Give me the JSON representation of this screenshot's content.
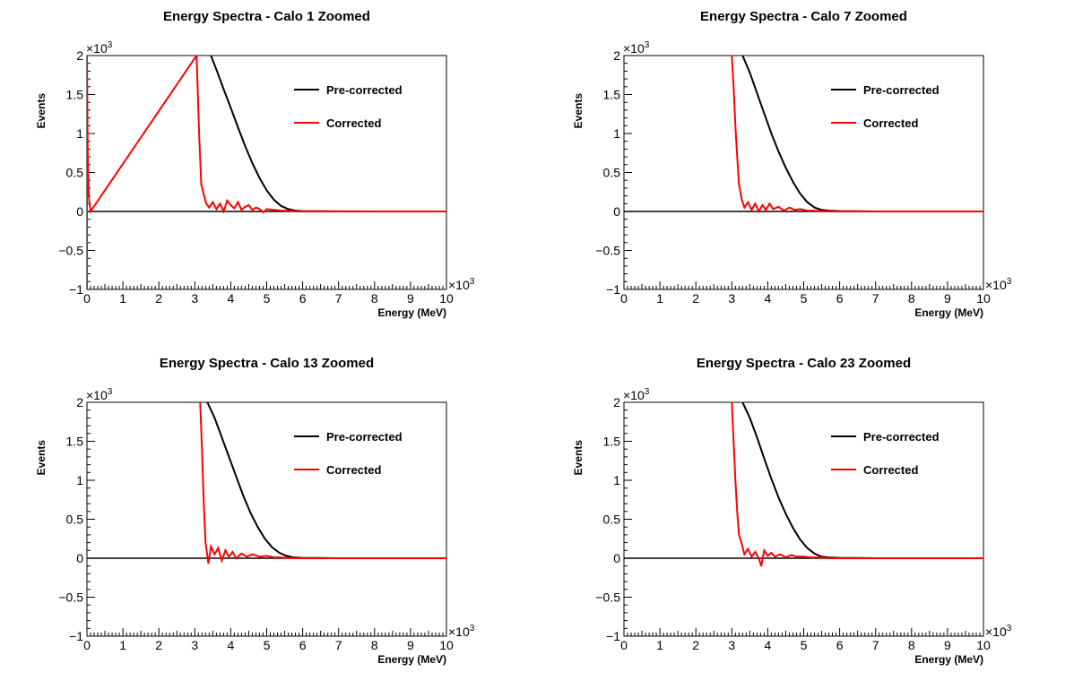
{
  "chart_data": [
    {
      "type": "line",
      "title": "Energy Spectra - Calo 1 Zoomed",
      "xlabel": "Energy (MeV)",
      "ylabel": "Events",
      "x_multiplier": "×10",
      "x_exponent": "3",
      "y_multiplier": "×10",
      "y_exponent": "3",
      "xlim": [
        0,
        10
      ],
      "ylim": [
        -1,
        2
      ],
      "x_ticks": [
        "0",
        "1",
        "2",
        "3",
        "4",
        "5",
        "6",
        "7",
        "8",
        "9",
        "10"
      ],
      "y_ticks": [
        "−1",
        "−0.5",
        "0",
        "0.5",
        "1",
        "1.5",
        "2"
      ],
      "legend_position": "top-right",
      "series": [
        {
          "name": "Pre-corrected",
          "color": "#000000",
          "x": [
            3.45,
            3.6,
            3.8,
            4.0,
            4.2,
            4.4,
            4.6,
            4.8,
            5.0,
            5.2,
            5.4,
            5.6,
            5.8,
            6.0,
            6.5,
            7.0,
            8.0,
            10.0
          ],
          "y": [
            2.0,
            1.82,
            1.57,
            1.33,
            1.08,
            0.84,
            0.62,
            0.43,
            0.27,
            0.15,
            0.07,
            0.03,
            0.01,
            0.005,
            0.002,
            0.001,
            0.0,
            0.0
          ]
        },
        {
          "name": "Corrected",
          "color": "#ff0000",
          "x": [
            0.0,
            0.0,
            0.02,
            0.05,
            0.1,
            3.05,
            3.12,
            3.18,
            3.25,
            3.32,
            3.4,
            3.5,
            3.6,
            3.7,
            3.8,
            3.9,
            4.0,
            4.1,
            4.2,
            4.3,
            4.4,
            4.5,
            4.6,
            4.7,
            4.8,
            4.9,
            5.0,
            5.2,
            5.4,
            5.6,
            5.8,
            6.0,
            6.5,
            7.0,
            8.0,
            10.0
          ],
          "y": [
            -1.0,
            2.0,
            0.8,
            0.2,
            0.0,
            2.0,
            1.0,
            0.35,
            0.22,
            0.1,
            0.05,
            0.12,
            0.03,
            0.1,
            0.0,
            0.14,
            0.08,
            0.04,
            0.12,
            0.02,
            0.06,
            0.08,
            0.02,
            0.05,
            0.03,
            -0.01,
            0.03,
            0.02,
            0.01,
            0.01,
            0.0,
            0.0,
            0.0,
            0.0,
            0.0,
            0.0
          ]
        }
      ]
    },
    {
      "type": "line",
      "title": "Energy Spectra - Calo 7 Zoomed",
      "xlabel": "Energy (MeV)",
      "ylabel": "Events",
      "x_multiplier": "×10",
      "x_exponent": "3",
      "y_multiplier": "×10",
      "y_exponent": "3",
      "xlim": [
        0,
        10
      ],
      "ylim": [
        -1,
        2
      ],
      "x_ticks": [
        "0",
        "1",
        "2",
        "3",
        "4",
        "5",
        "6",
        "7",
        "8",
        "9",
        "10"
      ],
      "y_ticks": [
        "−1",
        "−0.5",
        "0",
        "0.5",
        "1",
        "1.5",
        "2"
      ],
      "legend_position": "top-right",
      "series": [
        {
          "name": "Pre-corrected",
          "color": "#000000",
          "x": [
            3.3,
            3.5,
            3.7,
            3.9,
            4.1,
            4.3,
            4.5,
            4.7,
            4.9,
            5.1,
            5.3,
            5.5,
            5.7,
            6.0,
            6.5,
            7.0,
            8.0,
            10.0
          ],
          "y": [
            2.0,
            1.78,
            1.52,
            1.26,
            1.0,
            0.77,
            0.56,
            0.38,
            0.23,
            0.12,
            0.05,
            0.02,
            0.01,
            0.005,
            0.002,
            0.0,
            0.0,
            0.0
          ]
        },
        {
          "name": "Corrected",
          "color": "#ff0000",
          "x": [
            3.0,
            3.05,
            3.1,
            3.15,
            3.2,
            3.28,
            3.35,
            3.45,
            3.55,
            3.65,
            3.75,
            3.85,
            3.95,
            4.05,
            4.15,
            4.3,
            4.45,
            4.6,
            4.75,
            4.9,
            5.1,
            5.3,
            5.5,
            5.8,
            6.0,
            6.5,
            7.0,
            8.0,
            10.0
          ],
          "y": [
            2.0,
            1.6,
            1.1,
            0.7,
            0.35,
            0.15,
            0.05,
            0.12,
            0.02,
            0.1,
            0.0,
            0.08,
            0.02,
            0.1,
            0.03,
            0.06,
            0.01,
            0.05,
            0.02,
            0.03,
            0.01,
            0.01,
            0.005,
            0.0,
            0.0,
            0.0,
            0.0,
            0.0,
            0.0
          ]
        }
      ]
    },
    {
      "type": "line",
      "title": "Energy Spectra - Calo 13 Zoomed",
      "xlabel": "Energy (MeV)",
      "ylabel": "Events",
      "x_multiplier": "×10",
      "x_exponent": "3",
      "y_multiplier": "×10",
      "y_exponent": "3",
      "xlim": [
        0,
        10
      ],
      "ylim": [
        -1,
        2
      ],
      "x_ticks": [
        "0",
        "1",
        "2",
        "3",
        "4",
        "5",
        "6",
        "7",
        "8",
        "9",
        "10"
      ],
      "y_ticks": [
        "−1",
        "−0.5",
        "0",
        "0.5",
        "1",
        "1.5",
        "2"
      ],
      "legend_position": "top-right",
      "series": [
        {
          "name": "Pre-corrected",
          "color": "#000000",
          "x": [
            3.35,
            3.55,
            3.75,
            3.95,
            4.15,
            4.35,
            4.55,
            4.75,
            4.95,
            5.15,
            5.35,
            5.55,
            5.75,
            6.0,
            6.5,
            7.0,
            8.0,
            10.0
          ],
          "y": [
            2.0,
            1.8,
            1.55,
            1.3,
            1.05,
            0.8,
            0.58,
            0.4,
            0.25,
            0.14,
            0.07,
            0.03,
            0.01,
            0.005,
            0.002,
            0.0,
            0.0,
            0.0
          ]
        },
        {
          "name": "Corrected",
          "color": "#ff0000",
          "x": [
            3.15,
            3.2,
            3.25,
            3.3,
            3.38,
            3.45,
            3.55,
            3.65,
            3.75,
            3.85,
            3.95,
            4.05,
            4.15,
            4.3,
            4.45,
            4.6,
            4.8,
            5.0,
            5.2,
            5.4,
            5.6,
            5.8,
            6.0,
            6.5,
            7.0,
            8.0,
            10.0
          ],
          "y": [
            2.0,
            1.4,
            0.7,
            0.2,
            -0.07,
            0.15,
            0.05,
            0.13,
            -0.03,
            0.1,
            0.02,
            0.08,
            0.0,
            0.06,
            0.02,
            0.05,
            0.02,
            0.03,
            0.01,
            0.01,
            0.005,
            0.0,
            0.0,
            0.0,
            0.0,
            0.0,
            0.0
          ]
        }
      ]
    },
    {
      "type": "line",
      "title": "Energy Spectra - Calo 23 Zoomed",
      "xlabel": "Energy (MeV)",
      "ylabel": "Events",
      "x_multiplier": "×10",
      "x_exponent": "3",
      "y_multiplier": "×10",
      "y_exponent": "3",
      "xlim": [
        0,
        10
      ],
      "ylim": [
        -1,
        2
      ],
      "x_ticks": [
        "0",
        "1",
        "2",
        "3",
        "4",
        "5",
        "6",
        "7",
        "8",
        "9",
        "10"
      ],
      "y_ticks": [
        "−1",
        "−0.5",
        "0",
        "0.5",
        "1",
        "1.5",
        "2"
      ],
      "legend_position": "top-right",
      "series": [
        {
          "name": "Pre-corrected",
          "color": "#000000",
          "x": [
            3.3,
            3.5,
            3.7,
            3.9,
            4.1,
            4.3,
            4.5,
            4.7,
            4.9,
            5.1,
            5.3,
            5.5,
            5.7,
            6.0,
            6.5,
            7.0,
            8.0,
            10.0
          ],
          "y": [
            2.0,
            1.8,
            1.55,
            1.28,
            1.02,
            0.78,
            0.57,
            0.39,
            0.24,
            0.13,
            0.06,
            0.02,
            0.01,
            0.005,
            0.002,
            0.0,
            0.0,
            0.0
          ]
        },
        {
          "name": "Corrected",
          "color": "#ff0000",
          "x": [
            3.0,
            3.05,
            3.1,
            3.15,
            3.2,
            3.28,
            3.35,
            3.45,
            3.55,
            3.65,
            3.75,
            3.82,
            3.9,
            4.0,
            4.1,
            4.2,
            4.35,
            4.5,
            4.65,
            4.8,
            5.0,
            5.2,
            5.4,
            5.6,
            5.8,
            6.0,
            6.5,
            7.0,
            8.0,
            10.0
          ],
          "y": [
            2.0,
            1.5,
            1.0,
            0.6,
            0.3,
            0.18,
            0.05,
            0.12,
            0.02,
            0.08,
            0.0,
            -0.1,
            0.1,
            0.03,
            0.07,
            0.02,
            0.05,
            0.01,
            0.04,
            0.02,
            0.02,
            0.01,
            0.01,
            0.005,
            0.0,
            0.0,
            0.0,
            0.0,
            0.0,
            0.0
          ]
        }
      ]
    }
  ]
}
